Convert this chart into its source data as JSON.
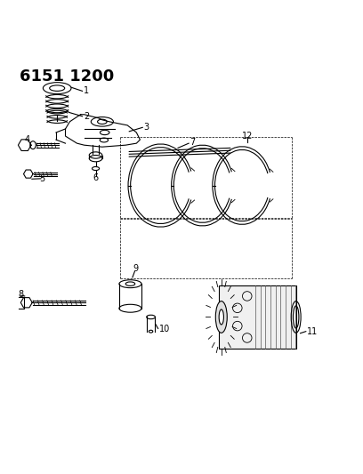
{
  "title": "6151 1200",
  "bg_color": "#ffffff",
  "line_color": "#000000",
  "title_fontsize": 13,
  "fig_width": 4.08,
  "fig_height": 5.33,
  "dpi": 100
}
